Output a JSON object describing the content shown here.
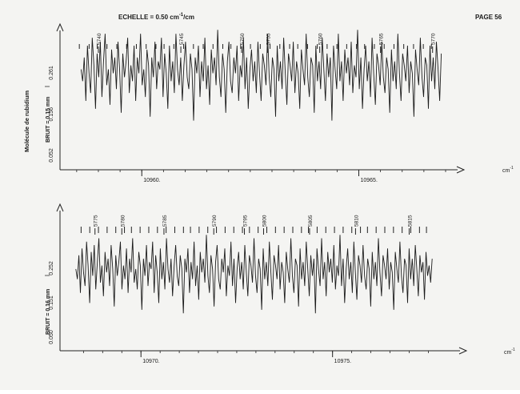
{
  "header": {
    "scale_prefix": "ECHELLE = 0.50 cm",
    "scale_exp": "-1",
    "scale_suffix": "/cm",
    "page": "PAGE 56"
  },
  "side_label": "Molécule de rubidium",
  "chart_data": [
    {
      "type": "line",
      "title": "",
      "xlabel": "cm",
      "xlabel_exp": "-1",
      "xlim": [
        10958.3,
        10967.0
      ],
      "x_ticks": [
        10960,
        10965
      ],
      "x_tick_labels": [
        "10960.",
        "10965."
      ],
      "ylim": [
        0,
        0.52
      ],
      "y_ticks": [
        0.052,
        0.156,
        0.261
      ],
      "y_tick_labels": [
        "0.052",
        "0.156",
        "0.261"
      ],
      "ylabel": "I",
      "noise_label": "BRUIT = 0.15 mm",
      "line_labels": [
        {
          "text": "5740",
          "x": 10959.0
        },
        {
          "text": "5745",
          "x": 10960.9
        },
        {
          "text": "5750",
          "x": 10962.3
        },
        {
          "text": "5755",
          "x": 10962.9
        },
        {
          "text": "5760",
          "x": 10964.1
        },
        {
          "text": "5765",
          "x": 10965.5
        },
        {
          "text": "5770",
          "x": 10966.7
        }
      ],
      "series": [
        {
          "x_start": 10958.6,
          "x_end": 10966.9,
          "values": [
            0.27,
            0.24,
            0.3,
            0.19,
            0.33,
            0.26,
            0.21,
            0.35,
            0.28,
            0.17,
            0.31,
            0.25,
            0.34,
            0.2,
            0.29,
            0.36,
            0.23,
            0.27,
            0.18,
            0.32,
            0.26,
            0.3,
            0.22,
            0.34,
            0.27,
            0.16,
            0.31,
            0.25,
            0.29,
            0.35,
            0.21,
            0.28,
            0.24,
            0.33,
            0.19,
            0.3,
            0.26,
            0.36,
            0.23,
            0.27,
            0.2,
            0.32,
            0.28,
            0.15,
            0.3,
            0.25,
            0.34,
            0.22,
            0.29,
            0.27,
            0.35,
            0.2,
            0.31,
            0.26,
            0.17,
            0.33,
            0.24,
            0.29,
            0.21,
            0.36,
            0.27,
            0.23,
            0.3,
            0.19,
            0.28,
            0.34,
            0.25,
            0.22,
            0.31,
            0.27,
            0.14,
            0.3,
            0.26,
            0.33,
            0.2,
            0.29,
            0.24,
            0.35,
            0.22,
            0.28,
            0.18,
            0.32,
            0.26,
            0.3,
            0.23,
            0.37,
            0.25,
            0.2,
            0.31,
            0.27,
            0.16,
            0.29,
            0.34,
            0.24,
            0.21,
            0.3,
            0.26,
            0.33,
            0.19,
            0.28,
            0.25,
            0.35,
            0.22,
            0.3,
            0.17,
            0.27,
            0.32,
            0.24,
            0.29,
            0.21,
            0.34,
            0.26,
            0.19,
            0.31,
            0.28,
            0.23,
            0.36,
            0.25,
            0.2,
            0.3,
            0.27,
            0.15,
            0.33,
            0.24,
            0.29,
            0.22,
            0.35,
            0.26,
            0.18,
            0.31,
            0.28,
            0.24,
            0.34,
            0.21,
            0.29,
            0.26,
            0.17,
            0.32,
            0.27,
            0.23,
            0.36,
            0.25,
            0.2,
            0.3,
            0.28,
            0.16,
            0.33,
            0.24,
            0.29,
            0.22,
            0.35,
            0.27,
            0.19,
            0.31,
            0.25,
            0.3,
            0.14,
            0.33,
            0.27,
            0.22,
            0.36,
            0.24,
            0.29,
            0.19,
            0.32,
            0.26,
            0.3,
            0.23,
            0.34,
            0.21,
            0.28,
            0.25,
            0.37,
            0.22,
            0.3,
            0.17,
            0.27,
            0.33,
            0.24,
            0.29,
            0.2,
            0.35,
            0.26,
            0.18,
            0.31,
            0.28,
            0.23,
            0.34,
            0.25,
            0.21,
            0.3,
            0.27,
            0.16,
            0.32,
            0.24,
            0.29,
            0.22,
            0.36,
            0.26,
            0.19,
            0.31,
            0.28,
            0.24,
            0.33,
            0.21,
            0.29,
            0.26,
            0.15,
            0.32,
            0.27,
            0.23,
            0.35,
            0.25,
            0.2,
            0.3,
            0.28,
            0.17,
            0.33,
            0.24,
            0.3,
            0.22,
            0.34,
            0.27,
            0.19,
            0.31
          ]
        }
      ]
    },
    {
      "type": "line",
      "title": "",
      "xlabel": "cm",
      "xlabel_exp": "-1",
      "xlim": [
        10968.2,
        10977.7
      ],
      "x_ticks": [
        10970,
        10975
      ],
      "x_tick_labels": [
        "10970.",
        "10975."
      ],
      "ylim": [
        0,
        0.5
      ],
      "y_ticks": [
        0.05,
        0.151,
        0.252
      ],
      "y_tick_labels": [
        "0.050",
        "0.151",
        "0.252"
      ],
      "ylabel": "I",
      "noise_label": "BRUIT = 0.16 mm",
      "line_labels": [
        {
          "text": "5775",
          "x": 10968.8
        },
        {
          "text": "5780",
          "x": 10969.5
        },
        {
          "text": "5785",
          "x": 10970.6
        },
        {
          "text": "5790",
          "x": 10971.9
        },
        {
          "text": "5795",
          "x": 10972.7
        },
        {
          "text": "5800",
          "x": 10973.2
        },
        {
          "text": "5805",
          "x": 10974.4
        },
        {
          "text": "5810",
          "x": 10975.6
        },
        {
          "text": "5815",
          "x": 10977.0
        }
      ],
      "series": [
        {
          "x_start": 10968.3,
          "x_end": 10977.6,
          "values": [
            0.25,
            0.22,
            0.29,
            0.18,
            0.31,
            0.24,
            0.2,
            0.33,
            0.26,
            0.15,
            0.3,
            0.23,
            0.32,
            0.19,
            0.27,
            0.34,
            0.21,
            0.26,
            0.17,
            0.3,
            0.24,
            0.28,
            0.2,
            0.32,
            0.25,
            0.14,
            0.29,
            0.23,
            0.27,
            0.33,
            0.19,
            0.26,
            0.22,
            0.31,
            0.18,
            0.28,
            0.24,
            0.34,
            0.21,
            0.25,
            0.19,
            0.3,
            0.26,
            0.13,
            0.28,
            0.23,
            0.32,
            0.2,
            0.27,
            0.25,
            0.33,
            0.18,
            0.29,
            0.24,
            0.15,
            0.31,
            0.22,
            0.27,
            0.19,
            0.34,
            0.25,
            0.21,
            0.28,
            0.17,
            0.26,
            0.32,
            0.23,
            0.2,
            0.29,
            0.25,
            0.12,
            0.28,
            0.24,
            0.31,
            0.18,
            0.27,
            0.22,
            0.33,
            0.2,
            0.26,
            0.16,
            0.3,
            0.24,
            0.28,
            0.21,
            0.35,
            0.23,
            0.18,
            0.29,
            0.25,
            0.14,
            0.27,
            0.32,
            0.22,
            0.19,
            0.28,
            0.24,
            0.31,
            0.17,
            0.26,
            0.23,
            0.33,
            0.2,
            0.28,
            0.15,
            0.25,
            0.3,
            0.22,
            0.27,
            0.19,
            0.32,
            0.24,
            0.17,
            0.29,
            0.26,
            0.21,
            0.34,
            0.23,
            0.18,
            0.28,
            0.25,
            0.13,
            0.31,
            0.22,
            0.27,
            0.2,
            0.33,
            0.24,
            0.16,
            0.29,
            0.26,
            0.22,
            0.32,
            0.19,
            0.27,
            0.24,
            0.15,
            0.3,
            0.25,
            0.21,
            0.34,
            0.23,
            0.18,
            0.28,
            0.26,
            0.14,
            0.31,
            0.22,
            0.27,
            0.2,
            0.33,
            0.25,
            0.17,
            0.29,
            0.23,
            0.28,
            0.12,
            0.31,
            0.25,
            0.2,
            0.34,
            0.22,
            0.27,
            0.17,
            0.3,
            0.24,
            0.28,
            0.21,
            0.32,
            0.19,
            0.26,
            0.23,
            0.35,
            0.2,
            0.28,
            0.15,
            0.25,
            0.31,
            0.22,
            0.27,
            0.18,
            0.33,
            0.24,
            0.16,
            0.29,
            0.26,
            0.21,
            0.32,
            0.23,
            0.19,
            0.28,
            0.25,
            0.14,
            0.3,
            0.22,
            0.27,
            0.2,
            0.34,
            0.24,
            0.17,
            0.29,
            0.26,
            0.22,
            0.31,
            0.19,
            0.27,
            0.24,
            0.13,
            0.3,
            0.25,
            0.21,
            0.33,
            0.23,
            0.18,
            0.28,
            0.26,
            0.15,
            0.31,
            0.22,
            0.28,
            0.2,
            0.32,
            0.25,
            0.17,
            0.29,
            0.24,
            0.27,
            0.16,
            0.3,
            0.23,
            0.26,
            0.21,
            0.28
          ]
        }
      ]
    }
  ]
}
